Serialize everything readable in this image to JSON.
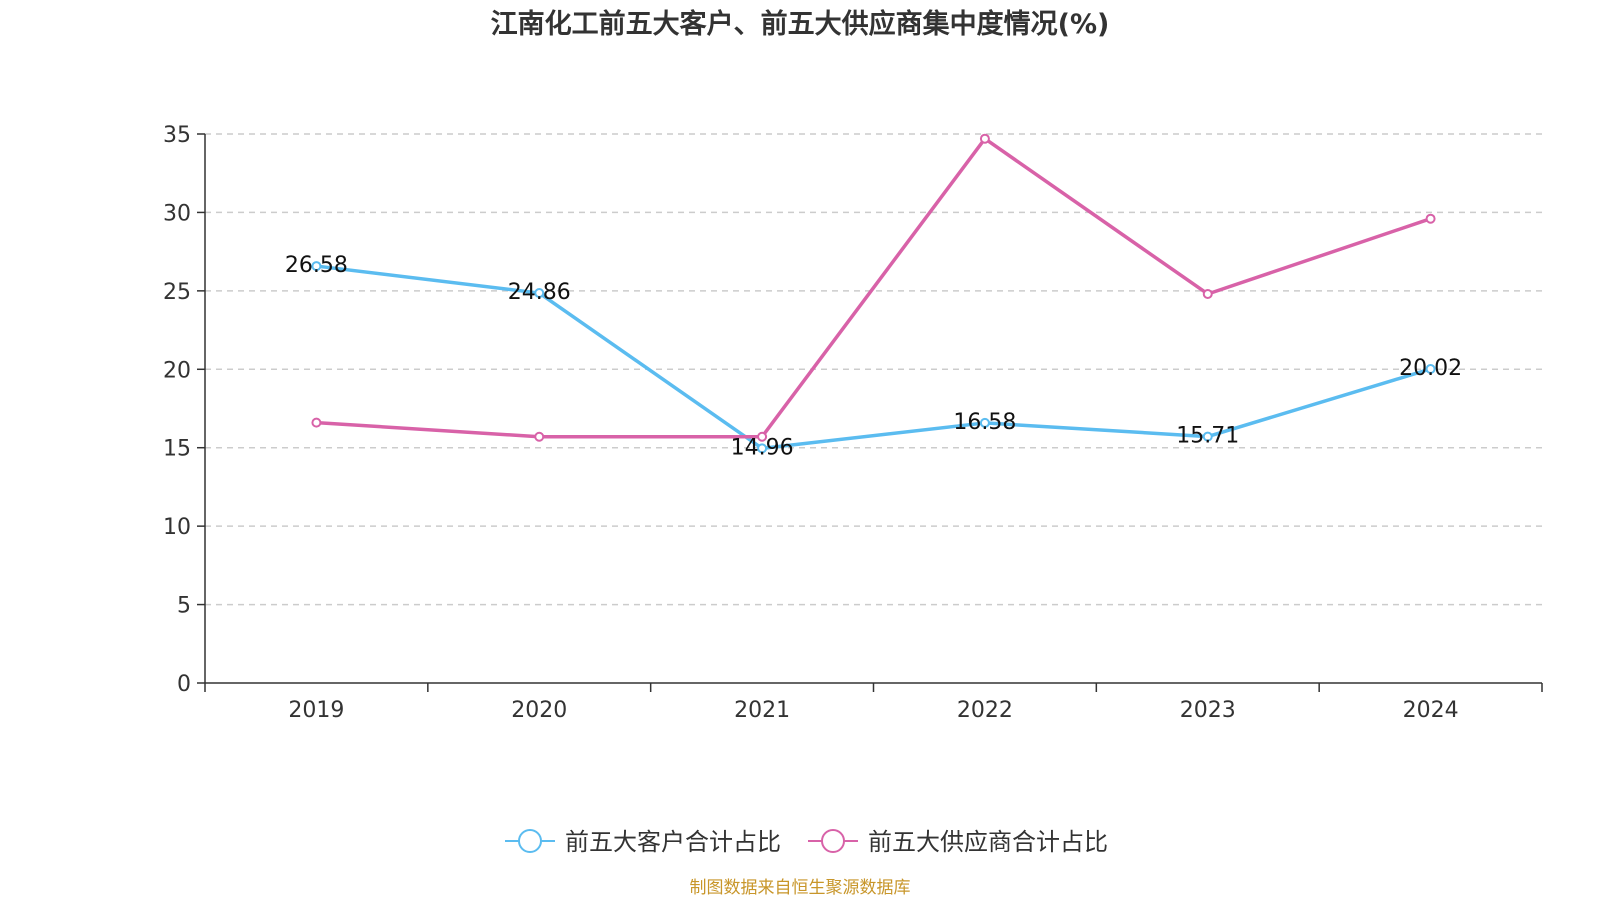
{
  "chart_data": {
    "type": "line",
    "title": "江南化工前五大客户、前五大供应商集中度情况(%)",
    "categories": [
      "2019",
      "2020",
      "2021",
      "2022",
      "2023",
      "2024"
    ],
    "ylim": [
      0,
      35
    ],
    "yticks": [
      "0",
      "5",
      "10",
      "15",
      "20",
      "25",
      "30",
      "35"
    ],
    "grid": true,
    "legend_position": "bottom",
    "series": [
      {
        "name": "前五大客户合计占比",
        "color": "#5bbcf0",
        "values": [
          26.58,
          24.86,
          14.96,
          16.58,
          15.71,
          20.02
        ],
        "labels": [
          "26.58",
          "24.86",
          "14.96",
          "16.58",
          "15.71",
          "20.02"
        ]
      },
      {
        "name": "前五大供应商合计占比",
        "color": "#d862a8",
        "values": [
          16.6,
          15.7,
          15.7,
          34.7,
          24.8,
          29.6
        ],
        "labels": []
      }
    ]
  },
  "source": "制图数据来自恒生聚源数据库"
}
